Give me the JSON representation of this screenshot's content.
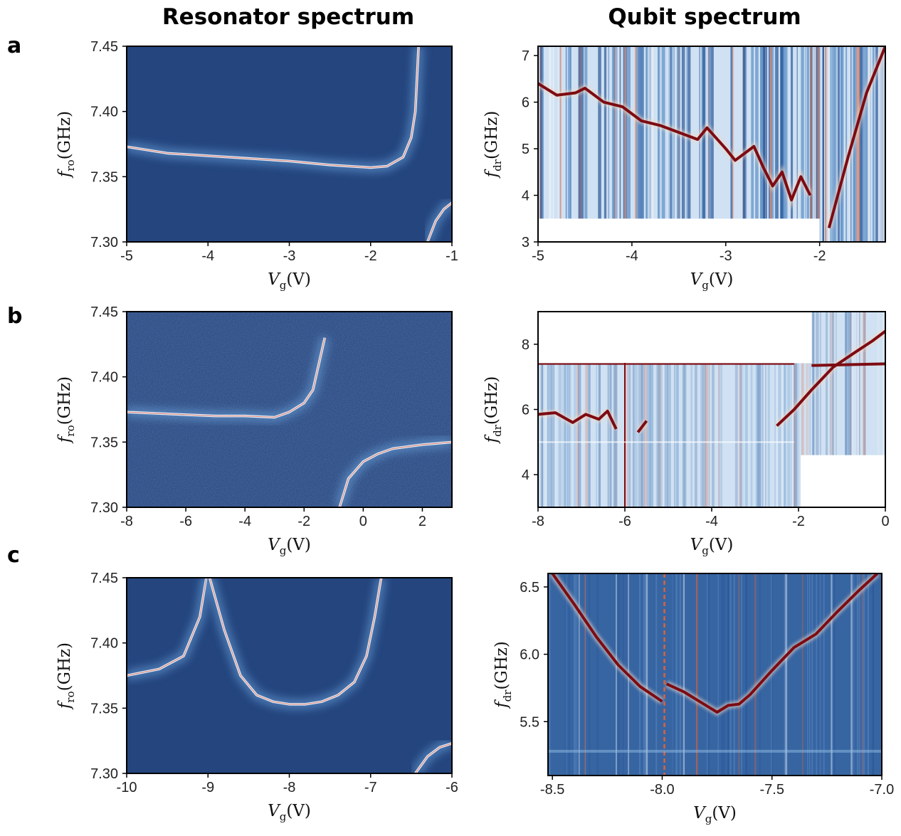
{
  "column_titles": [
    "Resonator spectrum",
    "Qubit spectrum"
  ],
  "row_labels": [
    "a",
    "b",
    "c"
  ],
  "colors": {
    "background": "#24457e",
    "dark_line": "#7d0b12",
    "bright_line": "#e8f1fb",
    "light_bg": "#cfe1f2",
    "stripe_dark": "#0e2d6b",
    "orange": "#d9623b"
  },
  "chart_data": [
    {
      "panel": "a-resonator",
      "type": "heatmap",
      "title": "Resonator spectrum",
      "xlabel": "V_g(V)",
      "ylabel": "f_ro(GHz)",
      "xlim": [
        -5,
        -1
      ],
      "ylim": [
        7.3,
        7.45
      ],
      "xticks": [
        "-5",
        "-4",
        "-3",
        "-2",
        "-1"
      ],
      "yticks": [
        "7.30",
        "7.35",
        "7.40",
        "7.45"
      ],
      "background": "dark",
      "series": [
        {
          "x": [
            -5,
            -4.5,
            -4,
            -3.5,
            -3,
            -2.5,
            -2,
            -1.8,
            -1.6,
            -1.5,
            -1.45,
            -1.41
          ],
          "y": [
            7.373,
            7.368,
            7.366,
            7.364,
            7.362,
            7.359,
            7.357,
            7.358,
            7.365,
            7.38,
            7.4,
            7.45
          ]
        },
        {
          "x": [
            -1.3,
            -1.2,
            -1.1,
            -1.0
          ],
          "y": [
            7.3,
            7.316,
            7.325,
            7.33
          ]
        }
      ]
    },
    {
      "panel": "a-qubit",
      "type": "heatmap",
      "title": "Qubit spectrum",
      "xlabel": "V_g(V)",
      "ylabel": "f_dr(GHz)",
      "xlim": [
        -5,
        -1.3
      ],
      "ylim": [
        3,
        7.2
      ],
      "xticks": [
        "-5",
        "-4",
        "-3",
        "-2"
      ],
      "yticks": [
        "3",
        "4",
        "5",
        "6",
        "7"
      ],
      "background": "light-striped",
      "series": [
        {
          "x": [
            -5,
            -4.8,
            -4.6,
            -4.5,
            -4.3,
            -4.1,
            -3.9,
            -3.7,
            -3.5,
            -3.3,
            -3.2,
            -3.0,
            -2.9,
            -2.7,
            -2.6,
            -2.5,
            -2.4,
            -2.3,
            -2.2,
            -2.1
          ],
          "y": [
            6.4,
            6.15,
            6.2,
            6.3,
            6.0,
            5.9,
            5.6,
            5.5,
            5.35,
            5.2,
            5.45,
            5.0,
            4.75,
            5.05,
            4.6,
            4.2,
            4.5,
            3.9,
            4.4,
            4.0
          ]
        },
        {
          "x": [
            -1.9,
            -1.7,
            -1.5,
            -1.3
          ],
          "y": [
            3.3,
            4.8,
            6.2,
            7.2
          ]
        }
      ]
    },
    {
      "panel": "b-resonator",
      "type": "heatmap",
      "title": "",
      "xlabel": "V_g(V)",
      "ylabel": "f_ro(GHz)",
      "xlim": [
        -8,
        3
      ],
      "ylim": [
        7.3,
        7.45
      ],
      "xticks": [
        "-8",
        "-6",
        "-4",
        "-2",
        "0",
        "2"
      ],
      "yticks": [
        "7.30",
        "7.35",
        "7.40",
        "7.45"
      ],
      "background": "dark-noisy",
      "series": [
        {
          "x": [
            -8,
            -7,
            -6,
            -5,
            -4,
            -3,
            -2.5,
            -2,
            -1.7,
            -1.5,
            -1.3
          ],
          "y": [
            7.373,
            7.372,
            7.371,
            7.37,
            7.37,
            7.369,
            7.373,
            7.38,
            7.39,
            7.41,
            7.43
          ]
        },
        {
          "x": [
            -0.8,
            -0.5,
            0,
            0.5,
            1,
            2,
            3
          ],
          "y": [
            7.3,
            7.322,
            7.335,
            7.341,
            7.345,
            7.348,
            7.35
          ]
        }
      ]
    },
    {
      "panel": "b-qubit",
      "type": "heatmap",
      "title": "",
      "xlabel": "V_g(V)",
      "ylabel": "f_dr(GHz)",
      "xlim": [
        -8,
        0
      ],
      "ylim": [
        3,
        9
      ],
      "xticks": [
        "-8",
        "-6",
        "-4",
        "-2",
        "0"
      ],
      "yticks": [
        "4",
        "6",
        "8"
      ],
      "background": "light",
      "series": [
        {
          "x": [
            -8,
            -7.6,
            -7.2,
            -6.9,
            -6.6,
            -6.4,
            -6.2
          ],
          "y": [
            5.85,
            5.9,
            5.6,
            5.85,
            5.7,
            5.95,
            5.4
          ]
        },
        {
          "x": [
            -5.7,
            -5.5
          ],
          "y": [
            5.3,
            5.65
          ]
        },
        {
          "x": [
            -2.5,
            -2.1,
            -1.7,
            -1.2,
            -0.7,
            -0.3,
            0
          ],
          "y": [
            5.5,
            6.0,
            6.6,
            7.3,
            7.75,
            8.1,
            8.4
          ]
        },
        {
          "x": [
            -8,
            -2.1
          ],
          "y": [
            7.4,
            7.4
          ]
        },
        {
          "x": [
            -1.7,
            0
          ],
          "y": [
            7.35,
            7.4
          ]
        }
      ]
    },
    {
      "panel": "c-resonator",
      "type": "heatmap",
      "title": "",
      "xlabel": "V_g(V)",
      "ylabel": "f_ro(GHz)",
      "xlim": [
        -10,
        -6
      ],
      "ylim": [
        7.3,
        7.45
      ],
      "xticks": [
        "-10",
        "-9",
        "-8",
        "-7",
        "-6"
      ],
      "yticks": [
        "7.30",
        "7.35",
        "7.40",
        "7.45"
      ],
      "background": "dark",
      "series": [
        {
          "x": [
            -10,
            -9.6,
            -9.3,
            -9.1,
            -9.02
          ],
          "y": [
            7.375,
            7.38,
            7.39,
            7.42,
            7.45
          ]
        },
        {
          "x": [
            -8.98,
            -8.8,
            -8.6,
            -8.4,
            -8.2,
            -8,
            -7.8,
            -7.6,
            -7.4,
            -7.2,
            -7.05,
            -6.95,
            -6.87
          ],
          "y": [
            7.45,
            7.41,
            7.375,
            7.36,
            7.355,
            7.353,
            7.353,
            7.355,
            7.36,
            7.37,
            7.39,
            7.42,
            7.45
          ]
        },
        {
          "x": [
            -6.45,
            -6.3,
            -6.15,
            -6.0
          ],
          "y": [
            7.3,
            7.313,
            7.32,
            7.323
          ]
        }
      ]
    },
    {
      "panel": "c-qubit",
      "type": "heatmap",
      "title": "",
      "xlabel": "V_g(V)",
      "ylabel": "f_dr(GHz)",
      "xlim": [
        -8.52,
        -7.0
      ],
      "ylim": [
        5.1,
        6.6
      ],
      "xticks": [
        "-8.5",
        "-8.0",
        "-7.5",
        "-7.0"
      ],
      "yticks": [
        "5.5",
        "6.0",
        "6.5"
      ],
      "background": "medium",
      "series": [
        {
          "x": [
            -8.5,
            -8.4,
            -8.3,
            -8.2,
            -8.1,
            -8.0
          ],
          "y": [
            6.6,
            6.37,
            6.13,
            5.92,
            5.76,
            5.65
          ]
        },
        {
          "x": [
            -7.98,
            -7.9,
            -7.8,
            -7.75,
            -7.7,
            -7.65,
            -7.6,
            -7.5,
            -7.4,
            -7.3,
            -7.2,
            -7.1,
            -7.02
          ],
          "y": [
            5.78,
            5.72,
            5.62,
            5.57,
            5.62,
            5.63,
            5.7,
            5.88,
            6.05,
            6.15,
            6.32,
            6.48,
            6.6
          ]
        }
      ]
    }
  ]
}
